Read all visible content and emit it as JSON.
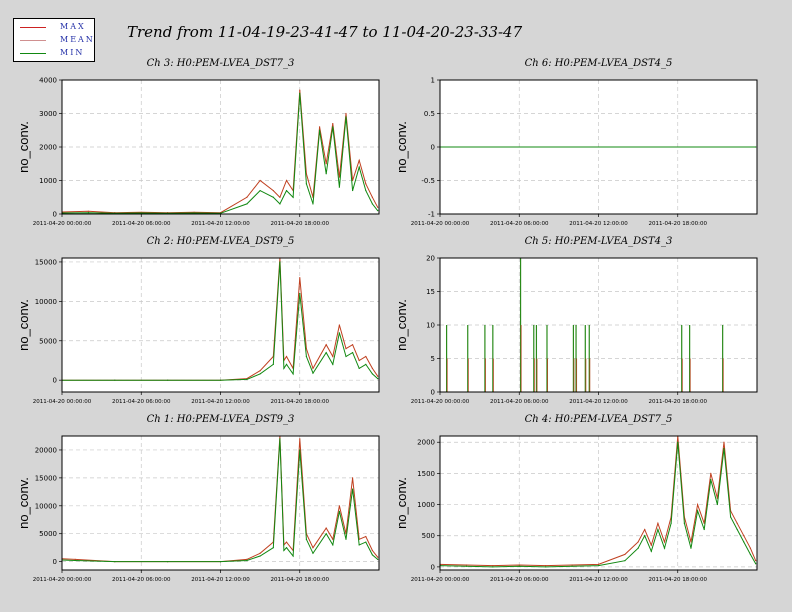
{
  "title": "Trend from 11-04-19-23-41-47 to 11-04-20-23-33-47",
  "legend": [
    {
      "label": "MAX",
      "color": "#cc2222"
    },
    {
      "label": "MEAN",
      "color": "#d09090"
    },
    {
      "label": "MIN",
      "color": "#118811"
    }
  ],
  "chart_data": [
    {
      "type": "line",
      "title": "Ch 3: H0:PEM-LVEA_DST7_3",
      "ylabel": "no_conv.",
      "ylim": [
        0,
        4000
      ],
      "yticks": [
        "0",
        "1000",
        "2000",
        "3000",
        "4000"
      ],
      "xticks": [
        "2011-04-20 00:00:00",
        "2011-04-20 06:00:00",
        "2011-04-20 12:00:00",
        "2011-04-20 18:00:00"
      ],
      "x": [
        0,
        2,
        4,
        6,
        8,
        10,
        12,
        14,
        15,
        16,
        16.5,
        17,
        17.5,
        18,
        18.5,
        19,
        19.5,
        20,
        20.5,
        21,
        21.5,
        22,
        22.5,
        23,
        23.5,
        23.9
      ],
      "series": [
        {
          "name": "MIN",
          "values": [
            30,
            40,
            20,
            30,
            20,
            30,
            20,
            300,
            700,
            500,
            300,
            700,
            500,
            3600,
            900,
            300,
            2500,
            1200,
            2600,
            800,
            2900,
            700,
            1400,
            700,
            300,
            100
          ]
        },
        {
          "name": "MAX",
          "values": [
            60,
            80,
            40,
            50,
            40,
            50,
            40,
            500,
            1000,
            700,
            500,
            1000,
            700,
            3700,
            1200,
            500,
            2600,
            1500,
            2700,
            1100,
            3000,
            1000,
            1600,
            900,
            500,
            200
          ]
        }
      ],
      "grid": true
    },
    {
      "type": "line",
      "title": "Ch 6: H0:PEM-LVEA_DST4_5",
      "ylabel": "no_conv.",
      "ylim": [
        -1,
        1
      ],
      "yticks": [
        "-1",
        "-0.5",
        "0",
        "0.5",
        "1"
      ],
      "xticks": [
        "2011-04-20 00:00:00",
        "2011-04-20 06:00:00",
        "2011-04-20 12:00:00",
        "2011-04-20 18:00:00"
      ],
      "x": [
        0,
        23.9
      ],
      "series": [
        {
          "name": "MIN",
          "values": [
            0,
            0
          ]
        }
      ],
      "grid": true
    },
    {
      "type": "line",
      "title": "Ch 2: H0:PEM-LVEA_DST9_5",
      "ylabel": "no_conv.",
      "ylim": [
        -1500,
        15500
      ],
      "yticks": [
        "0",
        "5000",
        "10000",
        "15000"
      ],
      "xticks": [
        "2011-04-20 00:00:00",
        "2011-04-20 06:00:00",
        "2011-04-20 12:00:00",
        "2011-04-20 18:00:00"
      ],
      "x": [
        0,
        4,
        8,
        12,
        14,
        15,
        16,
        16.5,
        16.8,
        17,
        17.5,
        18,
        18.5,
        19,
        20,
        20.5,
        21,
        21.5,
        22,
        22.5,
        23,
        23.5,
        23.9
      ],
      "series": [
        {
          "name": "MIN",
          "values": [
            0,
            0,
            0,
            0,
            100,
            800,
            2000,
            15000,
            1500,
            2000,
            800,
            11000,
            3000,
            900,
            3500,
            2000,
            6000,
            3000,
            3500,
            1500,
            2000,
            800,
            200
          ]
        },
        {
          "name": "MAX",
          "values": [
            0,
            0,
            0,
            0,
            200,
            1200,
            3000,
            15500,
            2500,
            3000,
            1500,
            13000,
            4000,
            1500,
            4500,
            3000,
            7000,
            4000,
            4500,
            2500,
            3000,
            1500,
            500
          ]
        }
      ],
      "grid": true
    },
    {
      "type": "bar",
      "title": "Ch 5: H0:PEM-LVEA_DST4_3",
      "ylabel": "no_conv.",
      "ylim": [
        0,
        20
      ],
      "yticks": [
        "0",
        "5",
        "10",
        "15",
        "20"
      ],
      "xticks": [
        "2011-04-20 00:00:00",
        "2011-04-20 06:00:00",
        "2011-04-20 12:00:00",
        "2011-04-20 18:00:00"
      ],
      "x": [
        0.5,
        2.1,
        3.4,
        4.0,
        6.1,
        7.1,
        7.3,
        8.1,
        10.1,
        10.3,
        11.0,
        11.3,
        18.3,
        18.9,
        21.4
      ],
      "series": [
        {
          "name": "MAX",
          "values": [
            10,
            10,
            10,
            10,
            20,
            10,
            10,
            10,
            10,
            10,
            10,
            10,
            10,
            10,
            10
          ]
        }
      ],
      "grid": true
    },
    {
      "type": "line",
      "title": "Ch 1: H0:PEM-LVEA_DST9_3",
      "ylabel": "no_conv.",
      "ylim": [
        -1500,
        22500
      ],
      "yticks": [
        "0",
        "5000",
        "10000",
        "15000",
        "20000"
      ],
      "xticks": [
        "2011-04-20 00:00:00",
        "2011-04-20 06:00:00",
        "2011-04-20 12:00:00",
        "2011-04-20 18:00:00"
      ],
      "x": [
        0,
        1,
        4,
        8,
        12,
        14,
        15,
        16,
        16.5,
        16.8,
        17,
        17.5,
        18,
        18.5,
        19,
        20,
        20.5,
        21,
        21.5,
        22,
        22.5,
        23,
        23.5,
        23.9
      ],
      "series": [
        {
          "name": "MIN",
          "values": [
            300,
            200,
            0,
            0,
            0,
            200,
            1000,
            2500,
            22000,
            2000,
            2500,
            1000,
            20000,
            4000,
            1500,
            5000,
            3000,
            9000,
            4000,
            13000,
            3000,
            3500,
            1200,
            400
          ]
        },
        {
          "name": "MAX",
          "values": [
            500,
            400,
            0,
            0,
            0,
            400,
            1500,
            3500,
            22500,
            3000,
            3500,
            2000,
            22000,
            5000,
            2500,
            6000,
            4000,
            10000,
            5000,
            15000,
            4000,
            4500,
            2000,
            800
          ]
        }
      ],
      "grid": true
    },
    {
      "type": "line",
      "title": "Ch 4: H0:PEM-LVEA_DST7_5",
      "ylabel": "no_conv.",
      "ylim": [
        -50,
        2100
      ],
      "yticks": [
        "0",
        "500",
        "1000",
        "1500",
        "2000"
      ],
      "xticks": [
        "2011-04-20 00:00:00",
        "2011-04-20 06:00:00",
        "2011-04-20 12:00:00",
        "2011-04-20 18:00:00"
      ],
      "x": [
        0,
        2,
        4,
        6,
        8,
        10,
        12,
        14,
        15,
        15.5,
        16,
        16.5,
        17,
        17.5,
        18,
        18.5,
        19,
        19.5,
        20,
        20.5,
        21,
        21.5,
        22,
        22.5,
        23,
        23.5,
        23.9
      ],
      "series": [
        {
          "name": "MIN",
          "values": [
            20,
            10,
            0,
            10,
            0,
            10,
            20,
            100,
            300,
            500,
            250,
            600,
            300,
            700,
            2000,
            700,
            300,
            900,
            600,
            1400,
            1000,
            1900,
            800,
            600,
            400,
            200,
            50
          ]
        },
        {
          "name": "MAX",
          "values": [
            40,
            30,
            20,
            30,
            20,
            30,
            40,
            200,
            400,
            600,
            350,
            700,
            400,
            800,
            2100,
            800,
            400,
            1000,
            700,
            1500,
            1100,
            2000,
            900,
            700,
            500,
            300,
            100
          ]
        }
      ],
      "grid": true
    }
  ]
}
